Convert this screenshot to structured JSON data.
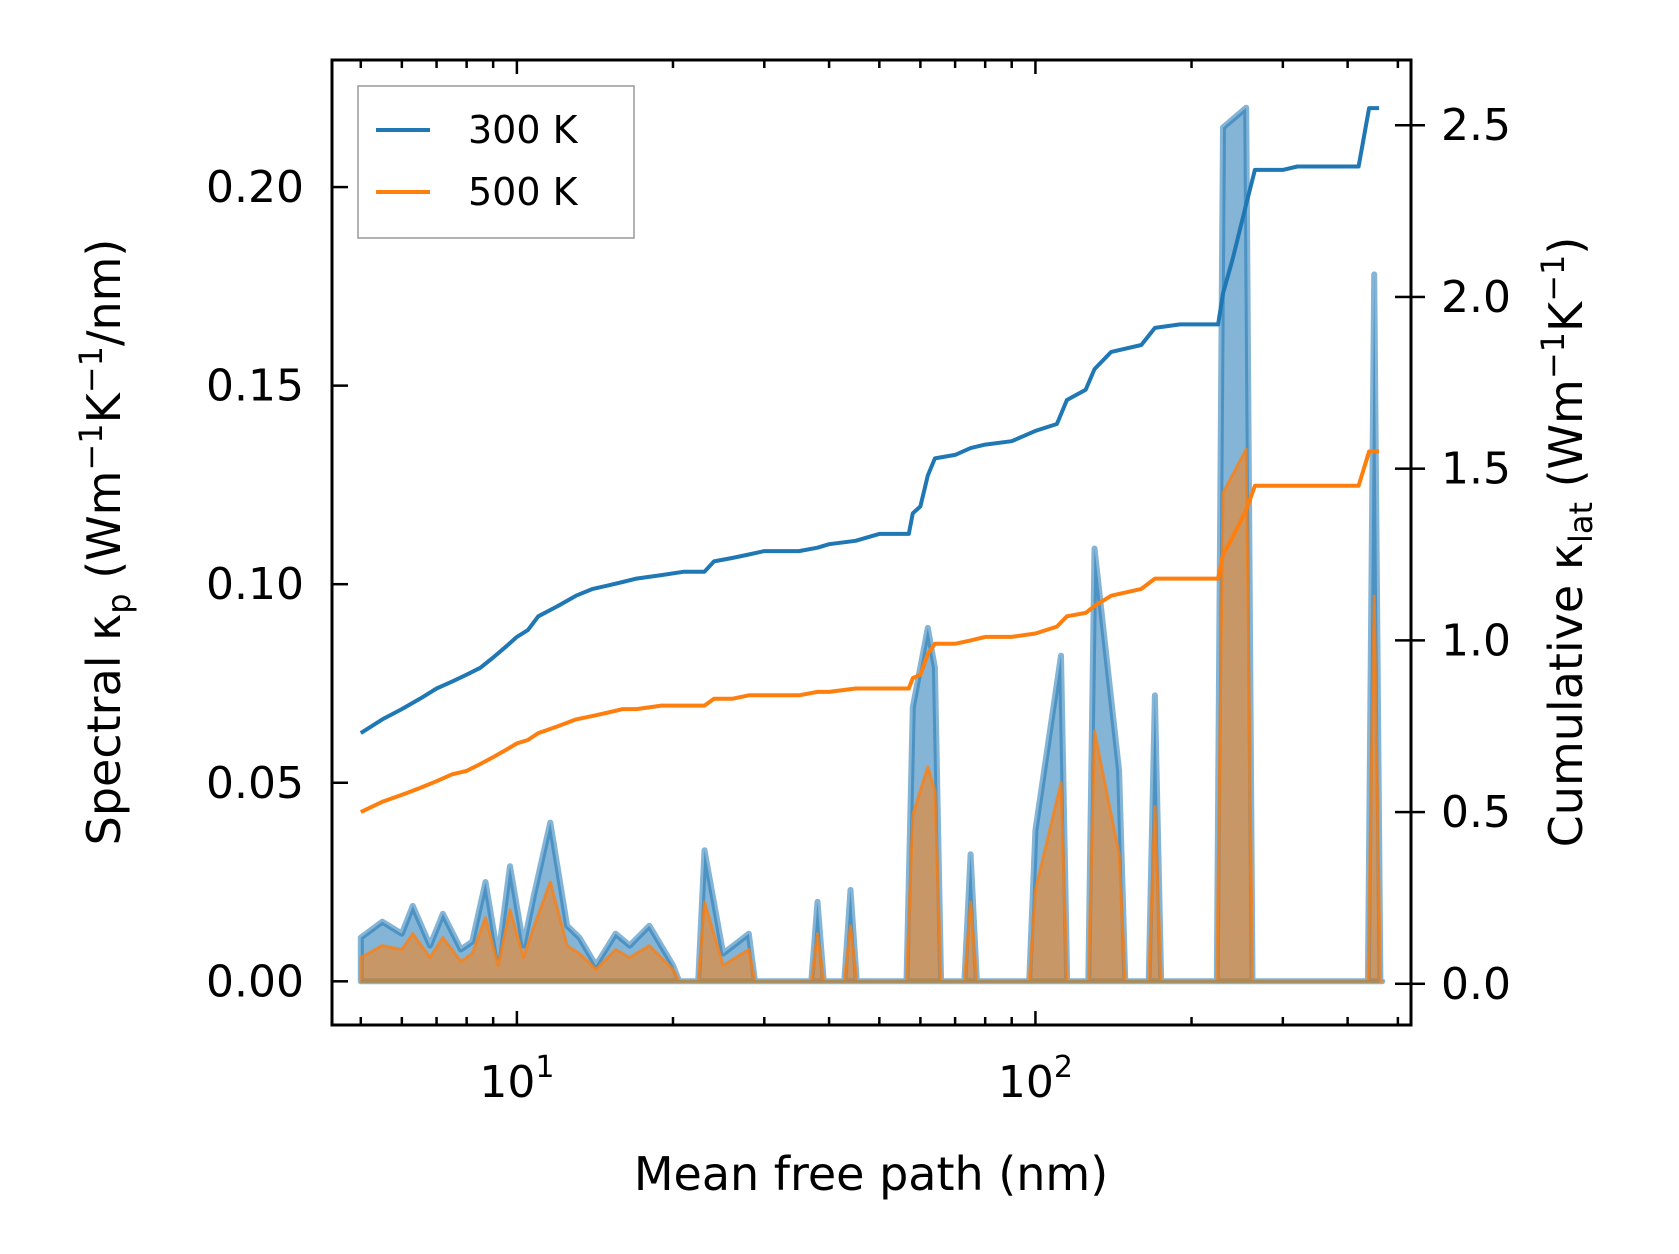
{
  "chart_data": {
    "type": "line",
    "xscale": "log",
    "xlabel": "Mean free path (nm)",
    "ylabel_left": "Spectral κ",
    "ylabel_left_sub": "p",
    "ylabel_left_units": "(Wm",
    "ylabel_left_units_b": "K",
    "ylabel_left_units_c": "/nm)",
    "ylabel_right": "Cumulative κ",
    "ylabel_right_sub": "lat",
    "ylabel_right_units": "(Wm",
    "ylabel_right_units_b": "K",
    "ylabel_right_units_c": ")",
    "exponent": "−1",
    "xlim": [
      4.4,
      530
    ],
    "ylim_left": [
      -0.011,
      0.232
    ],
    "ylim_right": [
      -0.12,
      2.69
    ],
    "x_ticks": [
      {
        "value": 10,
        "base": "10",
        "exp": "1"
      },
      {
        "value": 100,
        "base": "10",
        "exp": "2"
      }
    ],
    "y_ticks_left": [
      {
        "value": 0.0,
        "label": "0.00"
      },
      {
        "value": 0.05,
        "label": "0.05"
      },
      {
        "value": 0.1,
        "label": "0.10"
      },
      {
        "value": 0.15,
        "label": "0.15"
      },
      {
        "value": 0.2,
        "label": "0.20"
      }
    ],
    "y_ticks_right": [
      {
        "value": 0.0,
        "label": "0.0"
      },
      {
        "value": 0.5,
        "label": "0.5"
      },
      {
        "value": 1.0,
        "label": "1.0"
      },
      {
        "value": 1.5,
        "label": "1.5"
      },
      {
        "value": 2.0,
        "label": "2.0"
      },
      {
        "value": 2.5,
        "label": "2.5"
      }
    ],
    "legend": {
      "position": "top-left"
    },
    "series": [
      {
        "name": "300 K",
        "color": "#1f77b4",
        "cumulative": [
          [
            5,
            0.73
          ],
          [
            5.5,
            0.77
          ],
          [
            6,
            0.8
          ],
          [
            6.5,
            0.83
          ],
          [
            7,
            0.86
          ],
          [
            7.5,
            0.88
          ],
          [
            8,
            0.9
          ],
          [
            8.5,
            0.92
          ],
          [
            9,
            0.95
          ],
          [
            9.5,
            0.98
          ],
          [
            10,
            1.01
          ],
          [
            10.5,
            1.03
          ],
          [
            11,
            1.07
          ],
          [
            12,
            1.1
          ],
          [
            13,
            1.13
          ],
          [
            14,
            1.15
          ],
          [
            15,
            1.16
          ],
          [
            16,
            1.17
          ],
          [
            17,
            1.18
          ],
          [
            19,
            1.19
          ],
          [
            21,
            1.2
          ],
          [
            23,
            1.2
          ],
          [
            24,
            1.23
          ],
          [
            26,
            1.24
          ],
          [
            28,
            1.25
          ],
          [
            30,
            1.26
          ],
          [
            35,
            1.26
          ],
          [
            38,
            1.27
          ],
          [
            40,
            1.28
          ],
          [
            45,
            1.29
          ],
          [
            50,
            1.31
          ],
          [
            57,
            1.31
          ],
          [
            58,
            1.37
          ],
          [
            60,
            1.39
          ],
          [
            62,
            1.48
          ],
          [
            64,
            1.53
          ],
          [
            70,
            1.54
          ],
          [
            75,
            1.56
          ],
          [
            80,
            1.57
          ],
          [
            90,
            1.58
          ],
          [
            100,
            1.61
          ],
          [
            110,
            1.63
          ],
          [
            115,
            1.7
          ],
          [
            125,
            1.73
          ],
          [
            130,
            1.79
          ],
          [
            140,
            1.84
          ],
          [
            160,
            1.86
          ],
          [
            170,
            1.91
          ],
          [
            190,
            1.92
          ],
          [
            225,
            1.92
          ],
          [
            230,
            2.01
          ],
          [
            240,
            2.11
          ],
          [
            255,
            2.27
          ],
          [
            265,
            2.37
          ],
          [
            300,
            2.37
          ],
          [
            320,
            2.38
          ],
          [
            420,
            2.38
          ],
          [
            440,
            2.55
          ],
          [
            460,
            2.55
          ]
        ],
        "spectral_peaks": [
          [
            5,
            0.011
          ],
          [
            5.5,
            0.015
          ],
          [
            6,
            0.012
          ],
          [
            6.3,
            0.019
          ],
          [
            6.8,
            0.009
          ],
          [
            7.2,
            0.017
          ],
          [
            7.8,
            0.008
          ],
          [
            8.2,
            0.01
          ],
          [
            8.7,
            0.025
          ],
          [
            9.2,
            0.006
          ],
          [
            9.7,
            0.029
          ],
          [
            10.3,
            0.009
          ],
          [
            10.8,
            0.022
          ],
          [
            11.6,
            0.04
          ],
          [
            12.5,
            0.014
          ],
          [
            13.2,
            0.011
          ],
          [
            14.2,
            0.004
          ],
          [
            15.5,
            0.012
          ],
          [
            16.5,
            0.009
          ],
          [
            18,
            0.014
          ],
          [
            20,
            0.004
          ],
          [
            23,
            0.033
          ],
          [
            25,
            0.007
          ],
          [
            28,
            0.012
          ],
          [
            38,
            0.02
          ],
          [
            44,
            0.023
          ],
          [
            58,
            0.069
          ],
          [
            62,
            0.089
          ],
          [
            64,
            0.079
          ],
          [
            75,
            0.032
          ],
          [
            100,
            0.038
          ],
          [
            112,
            0.082
          ],
          [
            130,
            0.109
          ],
          [
            145,
            0.053
          ],
          [
            170,
            0.072
          ],
          [
            230,
            0.215
          ],
          [
            255,
            0.22
          ],
          [
            450,
            0.178
          ]
        ],
        "spectral_peaks_500": [
          [
            5,
            0.006
          ],
          [
            5.5,
            0.009
          ],
          [
            6,
            0.008
          ],
          [
            6.3,
            0.012
          ],
          [
            6.8,
            0.006
          ],
          [
            7.2,
            0.011
          ],
          [
            7.8,
            0.005
          ],
          [
            8.2,
            0.007
          ],
          [
            8.7,
            0.016
          ],
          [
            9.2,
            0.004
          ],
          [
            9.7,
            0.018
          ],
          [
            10.3,
            0.006
          ],
          [
            10.8,
            0.014
          ],
          [
            11.6,
            0.025
          ],
          [
            12.5,
            0.009
          ],
          [
            13.2,
            0.007
          ],
          [
            14.2,
            0.003
          ],
          [
            15.5,
            0.008
          ],
          [
            16.5,
            0.006
          ],
          [
            18,
            0.009
          ],
          [
            20,
            0.003
          ],
          [
            23,
            0.02
          ],
          [
            25,
            0.004
          ],
          [
            28,
            0.008
          ],
          [
            38,
            0.012
          ],
          [
            44,
            0.014
          ],
          [
            58,
            0.042
          ],
          [
            62,
            0.054
          ],
          [
            64,
            0.048
          ],
          [
            75,
            0.02
          ],
          [
            100,
            0.023
          ],
          [
            112,
            0.05
          ],
          [
            130,
            0.063
          ],
          [
            145,
            0.032
          ],
          [
            170,
            0.044
          ],
          [
            230,
            0.123
          ],
          [
            255,
            0.134
          ],
          [
            450,
            0.097
          ]
        ]
      },
      {
        "name": "500 K",
        "color": "#ff7f0e",
        "cumulative": [
          [
            5,
            0.5
          ],
          [
            5.5,
            0.53
          ],
          [
            6,
            0.55
          ],
          [
            6.5,
            0.57
          ],
          [
            7,
            0.59
          ],
          [
            7.5,
            0.61
          ],
          [
            8,
            0.62
          ],
          [
            8.5,
            0.64
          ],
          [
            9,
            0.66
          ],
          [
            9.5,
            0.68
          ],
          [
            10,
            0.7
          ],
          [
            10.5,
            0.71
          ],
          [
            11,
            0.73
          ],
          [
            12,
            0.75
          ],
          [
            13,
            0.77
          ],
          [
            14,
            0.78
          ],
          [
            15,
            0.79
          ],
          [
            16,
            0.8
          ],
          [
            17,
            0.8
          ],
          [
            19,
            0.81
          ],
          [
            21,
            0.81
          ],
          [
            23,
            0.81
          ],
          [
            24,
            0.83
          ],
          [
            26,
            0.83
          ],
          [
            28,
            0.84
          ],
          [
            30,
            0.84
          ],
          [
            35,
            0.84
          ],
          [
            38,
            0.85
          ],
          [
            40,
            0.85
          ],
          [
            45,
            0.86
          ],
          [
            50,
            0.86
          ],
          [
            57,
            0.86
          ],
          [
            58,
            0.89
          ],
          [
            60,
            0.9
          ],
          [
            62,
            0.96
          ],
          [
            64,
            0.99
          ],
          [
            70,
            0.99
          ],
          [
            75,
            1.0
          ],
          [
            80,
            1.01
          ],
          [
            90,
            1.01
          ],
          [
            100,
            1.02
          ],
          [
            110,
            1.04
          ],
          [
            115,
            1.07
          ],
          [
            125,
            1.08
          ],
          [
            130,
            1.1
          ],
          [
            140,
            1.13
          ],
          [
            160,
            1.15
          ],
          [
            170,
            1.18
          ],
          [
            190,
            1.18
          ],
          [
            225,
            1.18
          ],
          [
            230,
            1.25
          ],
          [
            240,
            1.3
          ],
          [
            255,
            1.38
          ],
          [
            265,
            1.45
          ],
          [
            300,
            1.45
          ],
          [
            320,
            1.45
          ],
          [
            420,
            1.45
          ],
          [
            440,
            1.55
          ],
          [
            460,
            1.55
          ]
        ]
      }
    ]
  }
}
